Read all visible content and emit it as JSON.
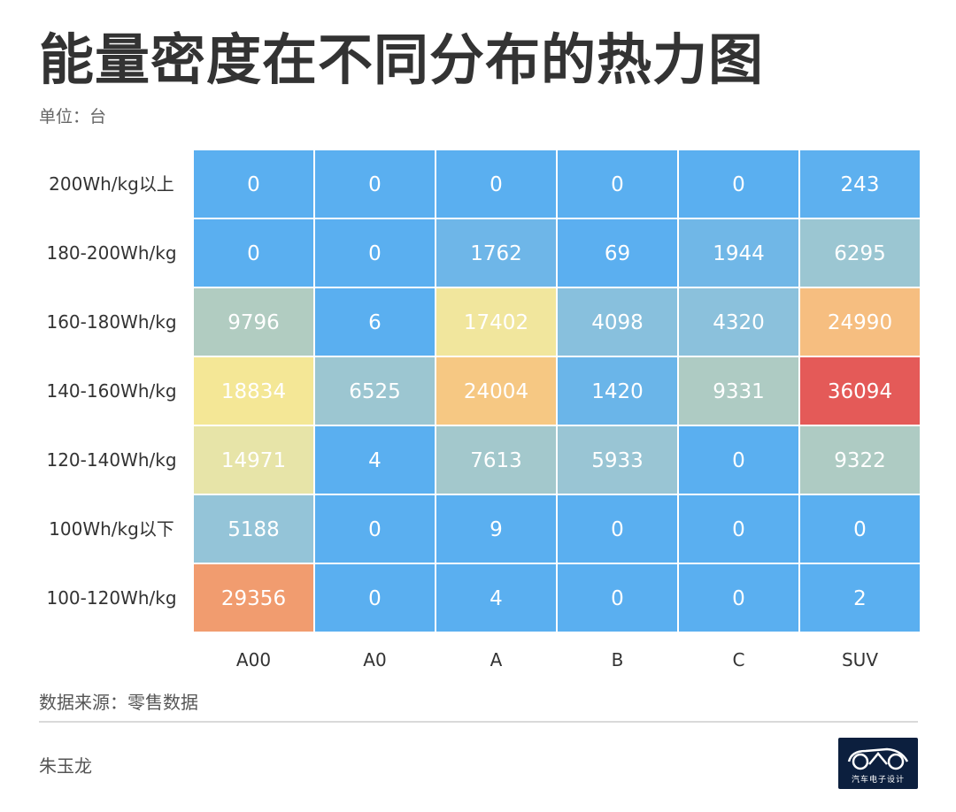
{
  "title": "能量密度在不同分布的热力图",
  "subtitle": "单位：台",
  "source": "数据来源：零售数据",
  "author": "朱玉龙",
  "logo": {
    "text": "汽车电子设计",
    "icon": "car-outline-icon"
  },
  "chart_data": {
    "type": "heatmap",
    "x_categories": [
      "A00",
      "A0",
      "A",
      "B",
      "C",
      "SUV"
    ],
    "y_categories": [
      "200Wh/kg以上",
      "180-200Wh/kg",
      "160-180Wh/kg",
      "140-160Wh/kg",
      "120-140Wh/kg",
      "100Wh/kg以下",
      "100-120Wh/kg"
    ],
    "values": [
      [
        0,
        0,
        0,
        0,
        0,
        243
      ],
      [
        0,
        0,
        1762,
        69,
        1944,
        6295
      ],
      [
        9796,
        6,
        17402,
        4098,
        4320,
        24990
      ],
      [
        18834,
        6525,
        24004,
        1420,
        9331,
        36094
      ],
      [
        14971,
        4,
        7613,
        5933,
        0,
        9322
      ],
      [
        5188,
        0,
        9,
        0,
        0,
        0
      ],
      [
        29356,
        0,
        4,
        0,
        0,
        2
      ]
    ],
    "value_range": [
      0,
      36094
    ],
    "color_scale": [
      "#5aaff0",
      "#94c4d8",
      "#b4cdbe",
      "#ece6a6",
      "#f9e78d",
      "#f5b77e",
      "#ef9068",
      "#e45a58"
    ]
  }
}
